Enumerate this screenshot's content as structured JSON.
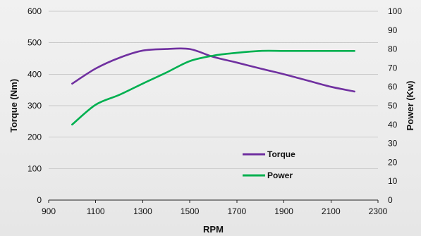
{
  "chart_data": {
    "type": "line",
    "title": "",
    "xlabel": "RPM",
    "ylabel": "Torque (Nm)",
    "y2label": "Power (Kw)",
    "xlim": [
      900,
      2300
    ],
    "ylim": [
      0,
      600
    ],
    "y2lim": [
      0,
      100
    ],
    "xticks": [
      "900",
      "1100",
      "1300",
      "1500",
      "1700",
      "1900",
      "2100",
      "2300"
    ],
    "yticks": [
      "0",
      "100",
      "200",
      "300",
      "400",
      "500",
      "600"
    ],
    "y2ticks": [
      "0",
      "10",
      "20",
      "30",
      "40",
      "50",
      "60",
      "70",
      "80",
      "90",
      "100"
    ],
    "grid": "horizontal",
    "legend_position": "lower-right",
    "series": [
      {
        "name": "Torque",
        "axis": "left",
        "color": "#7030a0",
        "x": [
          1000,
          1100,
          1200,
          1300,
          1400,
          1500,
          1600,
          1700,
          1800,
          1900,
          2000,
          2100,
          2200
        ],
        "values": [
          370,
          418,
          452,
          475,
          480,
          480,
          455,
          437,
          418,
          400,
          380,
          360,
          345
        ]
      },
      {
        "name": "Power",
        "axis": "right",
        "color": "#00b050",
        "x": [
          1000,
          1100,
          1200,
          1300,
          1400,
          1500,
          1600,
          1700,
          1800,
          1900,
          2000,
          2100,
          2200
        ],
        "values": [
          40,
          50.5,
          55.7,
          61.7,
          67.5,
          73.6,
          76.5,
          78,
          79,
          79,
          79,
          79,
          79
        ]
      }
    ]
  }
}
